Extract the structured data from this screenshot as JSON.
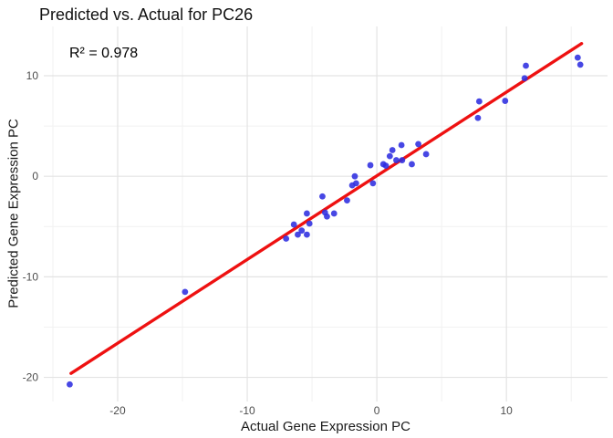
{
  "chart_data": {
    "type": "scatter",
    "title": "Predicted vs. Actual for PC26",
    "xlabel": "Actual Gene Expression PC",
    "ylabel": "Predicted Gene Expression PC",
    "annotation": "R² = 0.978",
    "xlim": [
      -25.7,
      17.8
    ],
    "ylim": [
      -22.4,
      14.9
    ],
    "x_ticks": [
      -20,
      -10,
      0,
      10
    ],
    "y_ticks": [
      -20,
      -10,
      0,
      10
    ],
    "x_minor_ticks": [
      -25,
      -15,
      -5,
      5,
      15
    ],
    "y_minor_ticks": [
      -15,
      -5,
      5
    ],
    "grid": "major-and-minor, no panel border, white background",
    "legend": false,
    "colors": {
      "point": "#2e2ee0",
      "trend_line": "#ee1111",
      "grid_major": "#e3e3e3",
      "grid_minor": "#f1f1f1",
      "tick_label": "#4d4d4d",
      "text": "#1a1a1a"
    },
    "points": [
      [
        -23.7,
        -20.7
      ],
      [
        -14.8,
        -11.5
      ],
      [
        -7.0,
        -6.2
      ],
      [
        -6.4,
        -4.8
      ],
      [
        -6.1,
        -5.8
      ],
      [
        -5.8,
        -5.4
      ],
      [
        -5.4,
        -5.8
      ],
      [
        -5.4,
        -3.7
      ],
      [
        -5.2,
        -4.7
      ],
      [
        -4.2,
        -2.0
      ],
      [
        -4.0,
        -3.6
      ],
      [
        -3.85,
        -4.0
      ],
      [
        -3.3,
        -3.7
      ],
      [
        -2.3,
        -2.4
      ],
      [
        -1.9,
        -0.9
      ],
      [
        -1.7,
        0.0
      ],
      [
        -1.6,
        -0.7
      ],
      [
        -0.5,
        1.1
      ],
      [
        -0.3,
        -0.7
      ],
      [
        0.5,
        1.2
      ],
      [
        0.7,
        1.05
      ],
      [
        1.0,
        2.0
      ],
      [
        1.2,
        2.6
      ],
      [
        1.5,
        1.6
      ],
      [
        1.9,
        3.1
      ],
      [
        1.95,
        1.6
      ],
      [
        2.7,
        1.2
      ],
      [
        3.2,
        3.2
      ],
      [
        3.8,
        2.2
      ],
      [
        7.8,
        5.8
      ],
      [
        7.9,
        7.45
      ],
      [
        9.9,
        7.5
      ],
      [
        11.4,
        9.75
      ],
      [
        11.5,
        11.0
      ],
      [
        15.5,
        11.8
      ],
      [
        15.7,
        11.1
      ]
    ],
    "trend_line": {
      "x1": -23.6,
      "y1": -19.6,
      "x2": 15.8,
      "y2": 13.2
    }
  }
}
